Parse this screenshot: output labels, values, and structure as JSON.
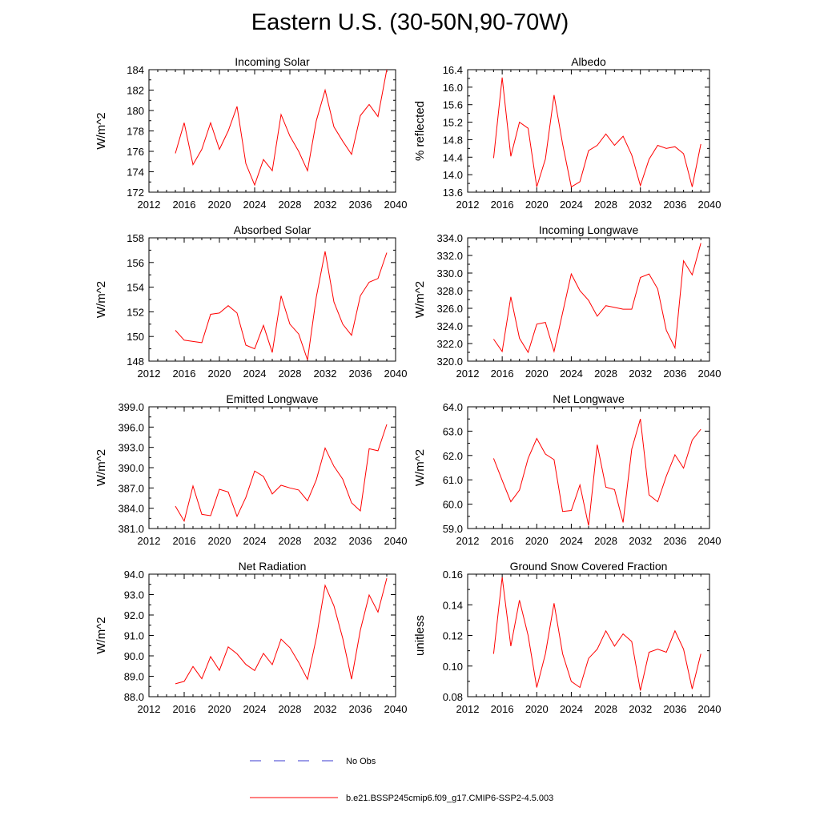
{
  "title": "Eastern U.S. (30-50N,90-70W)",
  "colors": {
    "model": "#ff0000",
    "obs": "#3b3bd1",
    "axis": "#000000"
  },
  "legend": {
    "obs_label": "No Obs",
    "model_label": "b.e21.BSSP245cmip6.f09_g17.CMIP6-SSP2-4.5.003"
  },
  "chart_data": [
    {
      "type": "line",
      "title": "Incoming Solar",
      "ylabel": "W/m^2",
      "xlim": [
        2012,
        2040
      ],
      "ylim": [
        172,
        184
      ],
      "xticks": [
        2012,
        2016,
        2020,
        2024,
        2028,
        2032,
        2036,
        2040
      ],
      "xtick_labels": [
        "2012",
        "2016",
        "2020",
        "2024",
        "2028",
        "2032",
        "2036",
        "2040"
      ],
      "yticks": [
        172,
        174,
        176,
        178,
        180,
        182,
        184
      ],
      "ytick_labels": [
        "172",
        "174",
        "176",
        "178",
        "180",
        "182",
        "184"
      ],
      "series": [
        {
          "name": "b.e21.BSSP245cmip6.f09_g17.CMIP6-SSP2-4.5.003",
          "x": [
            2015,
            2016,
            2017,
            2018,
            2019,
            2020,
            2021,
            2022,
            2023,
            2024,
            2025,
            2026,
            2027,
            2028,
            2029,
            2030,
            2031,
            2032,
            2033,
            2034,
            2035,
            2036,
            2037,
            2038,
            2039
          ],
          "y": [
            175.8,
            178.8,
            174.7,
            176.2,
            178.8,
            176.2,
            178.0,
            180.4,
            174.8,
            172.7,
            175.2,
            174.1,
            179.6,
            177.5,
            176.0,
            174.1,
            179.0,
            182.0,
            178.4,
            177.0,
            175.7,
            179.5,
            180.6,
            179.4,
            184.0
          ]
        }
      ]
    },
    {
      "type": "line",
      "title": "Albedo",
      "ylabel": "% reflected",
      "xlim": [
        2012,
        2040
      ],
      "ylim": [
        13.6,
        16.4
      ],
      "xticks": [
        2012,
        2016,
        2020,
        2024,
        2028,
        2032,
        2036,
        2040
      ],
      "xtick_labels": [
        "2012",
        "2016",
        "2020",
        "2024",
        "2028",
        "2032",
        "2036",
        "2040"
      ],
      "yticks": [
        13.6,
        14.0,
        14.4,
        14.8,
        15.2,
        15.6,
        16.0,
        16.4
      ],
      "ytick_labels": [
        "13.6",
        "14.0",
        "14.4",
        "14.8",
        "15.2",
        "15.6",
        "16.0",
        "16.4"
      ],
      "series": [
        {
          "name": "b.e21.BSSP245cmip6.f09_g17.CMIP6-SSP2-4.5.003",
          "x": [
            2015,
            2016,
            2017,
            2018,
            2019,
            2020,
            2021,
            2022,
            2023,
            2024,
            2025,
            2026,
            2027,
            2028,
            2029,
            2030,
            2031,
            2032,
            2033,
            2034,
            2035,
            2036,
            2037,
            2038,
            2039
          ],
          "y": [
            14.38,
            16.22,
            14.42,
            15.2,
            15.06,
            13.72,
            14.36,
            15.82,
            14.7,
            13.72,
            13.84,
            14.55,
            14.67,
            14.93,
            14.67,
            14.88,
            14.45,
            13.75,
            14.35,
            14.67,
            14.6,
            14.64,
            14.48,
            13.72,
            14.7
          ]
        }
      ]
    },
    {
      "type": "line",
      "title": "Absorbed Solar",
      "ylabel": "W/m^2",
      "xlim": [
        2012,
        2040
      ],
      "ylim": [
        148,
        158
      ],
      "xticks": [
        2012,
        2016,
        2020,
        2024,
        2028,
        2032,
        2036,
        2040
      ],
      "xtick_labels": [
        "2012",
        "2016",
        "2020",
        "2024",
        "2028",
        "2032",
        "2036",
        "2040"
      ],
      "yticks": [
        148,
        150,
        152,
        154,
        156,
        158
      ],
      "ytick_labels": [
        "148",
        "150",
        "152",
        "154",
        "156",
        "158"
      ],
      "series": [
        {
          "name": "b.e21.BSSP245cmip6.f09_g17.CMIP6-SSP2-4.5.003",
          "x": [
            2015,
            2016,
            2017,
            2018,
            2019,
            2020,
            2021,
            2022,
            2023,
            2024,
            2025,
            2026,
            2027,
            2028,
            2029,
            2030,
            2031,
            2032,
            2033,
            2034,
            2035,
            2036,
            2037,
            2038,
            2039
          ],
          "y": [
            150.5,
            149.7,
            149.6,
            149.5,
            151.8,
            151.9,
            152.5,
            151.9,
            149.3,
            149.0,
            150.9,
            148.7,
            153.3,
            151.0,
            150.2,
            148.1,
            153.2,
            156.9,
            152.8,
            151.0,
            150.1,
            153.3,
            154.4,
            154.7,
            156.8
          ]
        }
      ]
    },
    {
      "type": "line",
      "title": "Incoming Longwave",
      "ylabel": "W/m^2",
      "xlim": [
        2012,
        2040
      ],
      "ylim": [
        320.0,
        334.0
      ],
      "xticks": [
        2012,
        2016,
        2020,
        2024,
        2028,
        2032,
        2036,
        2040
      ],
      "xtick_labels": [
        "2012",
        "2016",
        "2020",
        "2024",
        "2028",
        "2032",
        "2036",
        "2040"
      ],
      "yticks": [
        320,
        322,
        324,
        326,
        328,
        330,
        332,
        334
      ],
      "ytick_labels": [
        "320.0",
        "322.0",
        "324.0",
        "326.0",
        "328.0",
        "330.0",
        "332.0",
        "334.0"
      ],
      "series": [
        {
          "name": "b.e21.BSSP245cmip6.f09_g17.CMIP6-SSP2-4.5.003",
          "x": [
            2015,
            2016,
            2017,
            2018,
            2019,
            2020,
            2021,
            2022,
            2023,
            2024,
            2025,
            2026,
            2027,
            2028,
            2029,
            2030,
            2031,
            2032,
            2033,
            2034,
            2035,
            2036,
            2037,
            2038,
            2039
          ],
          "y": [
            322.5,
            321.1,
            327.3,
            322.6,
            321.0,
            324.2,
            324.4,
            321.1,
            325.5,
            329.9,
            328.0,
            326.9,
            325.1,
            326.3,
            326.1,
            325.9,
            325.9,
            329.5,
            329.9,
            328.2,
            323.5,
            321.5,
            331.4,
            329.8,
            333.4
          ]
        }
      ]
    },
    {
      "type": "line",
      "title": "Emitted Longwave",
      "ylabel": "W/m^2",
      "xlim": [
        2012,
        2040
      ],
      "ylim": [
        381.0,
        399.0
      ],
      "xticks": [
        2012,
        2016,
        2020,
        2024,
        2028,
        2032,
        2036,
        2040
      ],
      "xtick_labels": [
        "2012",
        "2016",
        "2020",
        "2024",
        "2028",
        "2032",
        "2036",
        "2040"
      ],
      "yticks": [
        381,
        384,
        387,
        390,
        393,
        396,
        399
      ],
      "ytick_labels": [
        "381.0",
        "384.0",
        "387.0",
        "390.0",
        "393.0",
        "396.0",
        "399.0"
      ],
      "series": [
        {
          "name": "b.e21.BSSP245cmip6.f09_g17.CMIP6-SSP2-4.5.003",
          "x": [
            2015,
            2016,
            2017,
            2018,
            2019,
            2020,
            2021,
            2022,
            2023,
            2024,
            2025,
            2026,
            2027,
            2028,
            2029,
            2030,
            2031,
            2032,
            2033,
            2034,
            2035,
            2036,
            2037,
            2038,
            2039
          ],
          "y": [
            384.3,
            382.1,
            387.3,
            383.1,
            382.9,
            386.8,
            386.4,
            382.8,
            385.6,
            389.5,
            388.7,
            386.1,
            387.4,
            387.0,
            386.7,
            385.1,
            388.2,
            392.9,
            390.2,
            388.3,
            384.8,
            383.6,
            392.8,
            392.5,
            396.4
          ]
        }
      ]
    },
    {
      "type": "line",
      "title": "Net Longwave",
      "ylabel": "W/m^2",
      "xlim": [
        2012,
        2040
      ],
      "ylim": [
        59.0,
        64.0
      ],
      "xticks": [
        2012,
        2016,
        2020,
        2024,
        2028,
        2032,
        2036,
        2040
      ],
      "xtick_labels": [
        "2012",
        "2016",
        "2020",
        "2024",
        "2028",
        "2032",
        "2036",
        "2040"
      ],
      "yticks": [
        59,
        60,
        61,
        62,
        63,
        64
      ],
      "ytick_labels": [
        "59.0",
        "60.0",
        "61.0",
        "62.0",
        "63.0",
        "64.0"
      ],
      "series": [
        {
          "name": "b.e21.BSSP245cmip6.f09_g17.CMIP6-SSP2-4.5.003",
          "x": [
            2015,
            2016,
            2017,
            2018,
            2019,
            2020,
            2021,
            2022,
            2023,
            2024,
            2025,
            2026,
            2027,
            2028,
            2029,
            2030,
            2031,
            2032,
            2033,
            2034,
            2035,
            2036,
            2037,
            2038,
            2039
          ],
          "y": [
            61.88,
            60.98,
            60.1,
            60.58,
            61.88,
            62.7,
            62.06,
            61.83,
            59.7,
            59.74,
            60.79,
            59.12,
            62.44,
            60.7,
            60.6,
            59.25,
            62.26,
            63.5,
            60.38,
            60.1,
            61.15,
            62.03,
            61.48,
            62.63,
            63.08
          ]
        }
      ]
    },
    {
      "type": "line",
      "title": "Net Radiation",
      "ylabel": "W/m^2",
      "xlim": [
        2012,
        2040
      ],
      "ylim": [
        88.0,
        94.0
      ],
      "xticks": [
        2012,
        2016,
        2020,
        2024,
        2028,
        2032,
        2036,
        2040
      ],
      "xtick_labels": [
        "2012",
        "2016",
        "2020",
        "2024",
        "2028",
        "2032",
        "2036",
        "2040"
      ],
      "yticks": [
        88,
        89,
        90,
        91,
        92,
        93,
        94
      ],
      "ytick_labels": [
        "88.0",
        "89.0",
        "90.0",
        "91.0",
        "92.0",
        "93.0",
        "94.0"
      ],
      "series": [
        {
          "name": "b.e21.BSSP245cmip6.f09_g17.CMIP6-SSP2-4.5.003",
          "x": [
            2015,
            2016,
            2017,
            2018,
            2019,
            2020,
            2021,
            2022,
            2023,
            2024,
            2025,
            2026,
            2027,
            2028,
            2029,
            2030,
            2031,
            2032,
            2033,
            2034,
            2035,
            2036,
            2037,
            2038,
            2039
          ],
          "y": [
            88.63,
            88.75,
            89.48,
            88.88,
            89.96,
            89.29,
            90.44,
            90.1,
            89.58,
            89.28,
            90.12,
            89.57,
            90.82,
            90.4,
            89.68,
            88.85,
            90.87,
            93.45,
            92.45,
            90.86,
            88.86,
            91.26,
            92.98,
            92.14,
            93.8
          ]
        }
      ]
    },
    {
      "type": "line",
      "title": "Ground Snow Covered Fraction",
      "ylabel": "unitless",
      "xlim": [
        2012,
        2040
      ],
      "ylim": [
        0.08,
        0.16
      ],
      "xticks": [
        2012,
        2016,
        2020,
        2024,
        2028,
        2032,
        2036,
        2040
      ],
      "xtick_labels": [
        "2012",
        "2016",
        "2020",
        "2024",
        "2028",
        "2032",
        "2036",
        "2040"
      ],
      "yticks": [
        0.08,
        0.1,
        0.12,
        0.14,
        0.16
      ],
      "ytick_labels": [
        "0.08",
        "0.10",
        "0.12",
        "0.14",
        "0.16"
      ],
      "series": [
        {
          "name": "b.e21.BSSP245cmip6.f09_g17.CMIP6-SSP2-4.5.003",
          "x": [
            2015,
            2016,
            2017,
            2018,
            2019,
            2020,
            2021,
            2022,
            2023,
            2024,
            2025,
            2026,
            2027,
            2028,
            2029,
            2030,
            2031,
            2032,
            2033,
            2034,
            2035,
            2036,
            2037,
            2038,
            2039
          ],
          "y": [
            0.108,
            0.158,
            0.113,
            0.143,
            0.12,
            0.086,
            0.108,
            0.141,
            0.108,
            0.09,
            0.086,
            0.105,
            0.111,
            0.123,
            0.113,
            0.121,
            0.116,
            0.084,
            0.109,
            0.111,
            0.109,
            0.123,
            0.111,
            0.085,
            0.108
          ]
        }
      ]
    }
  ]
}
